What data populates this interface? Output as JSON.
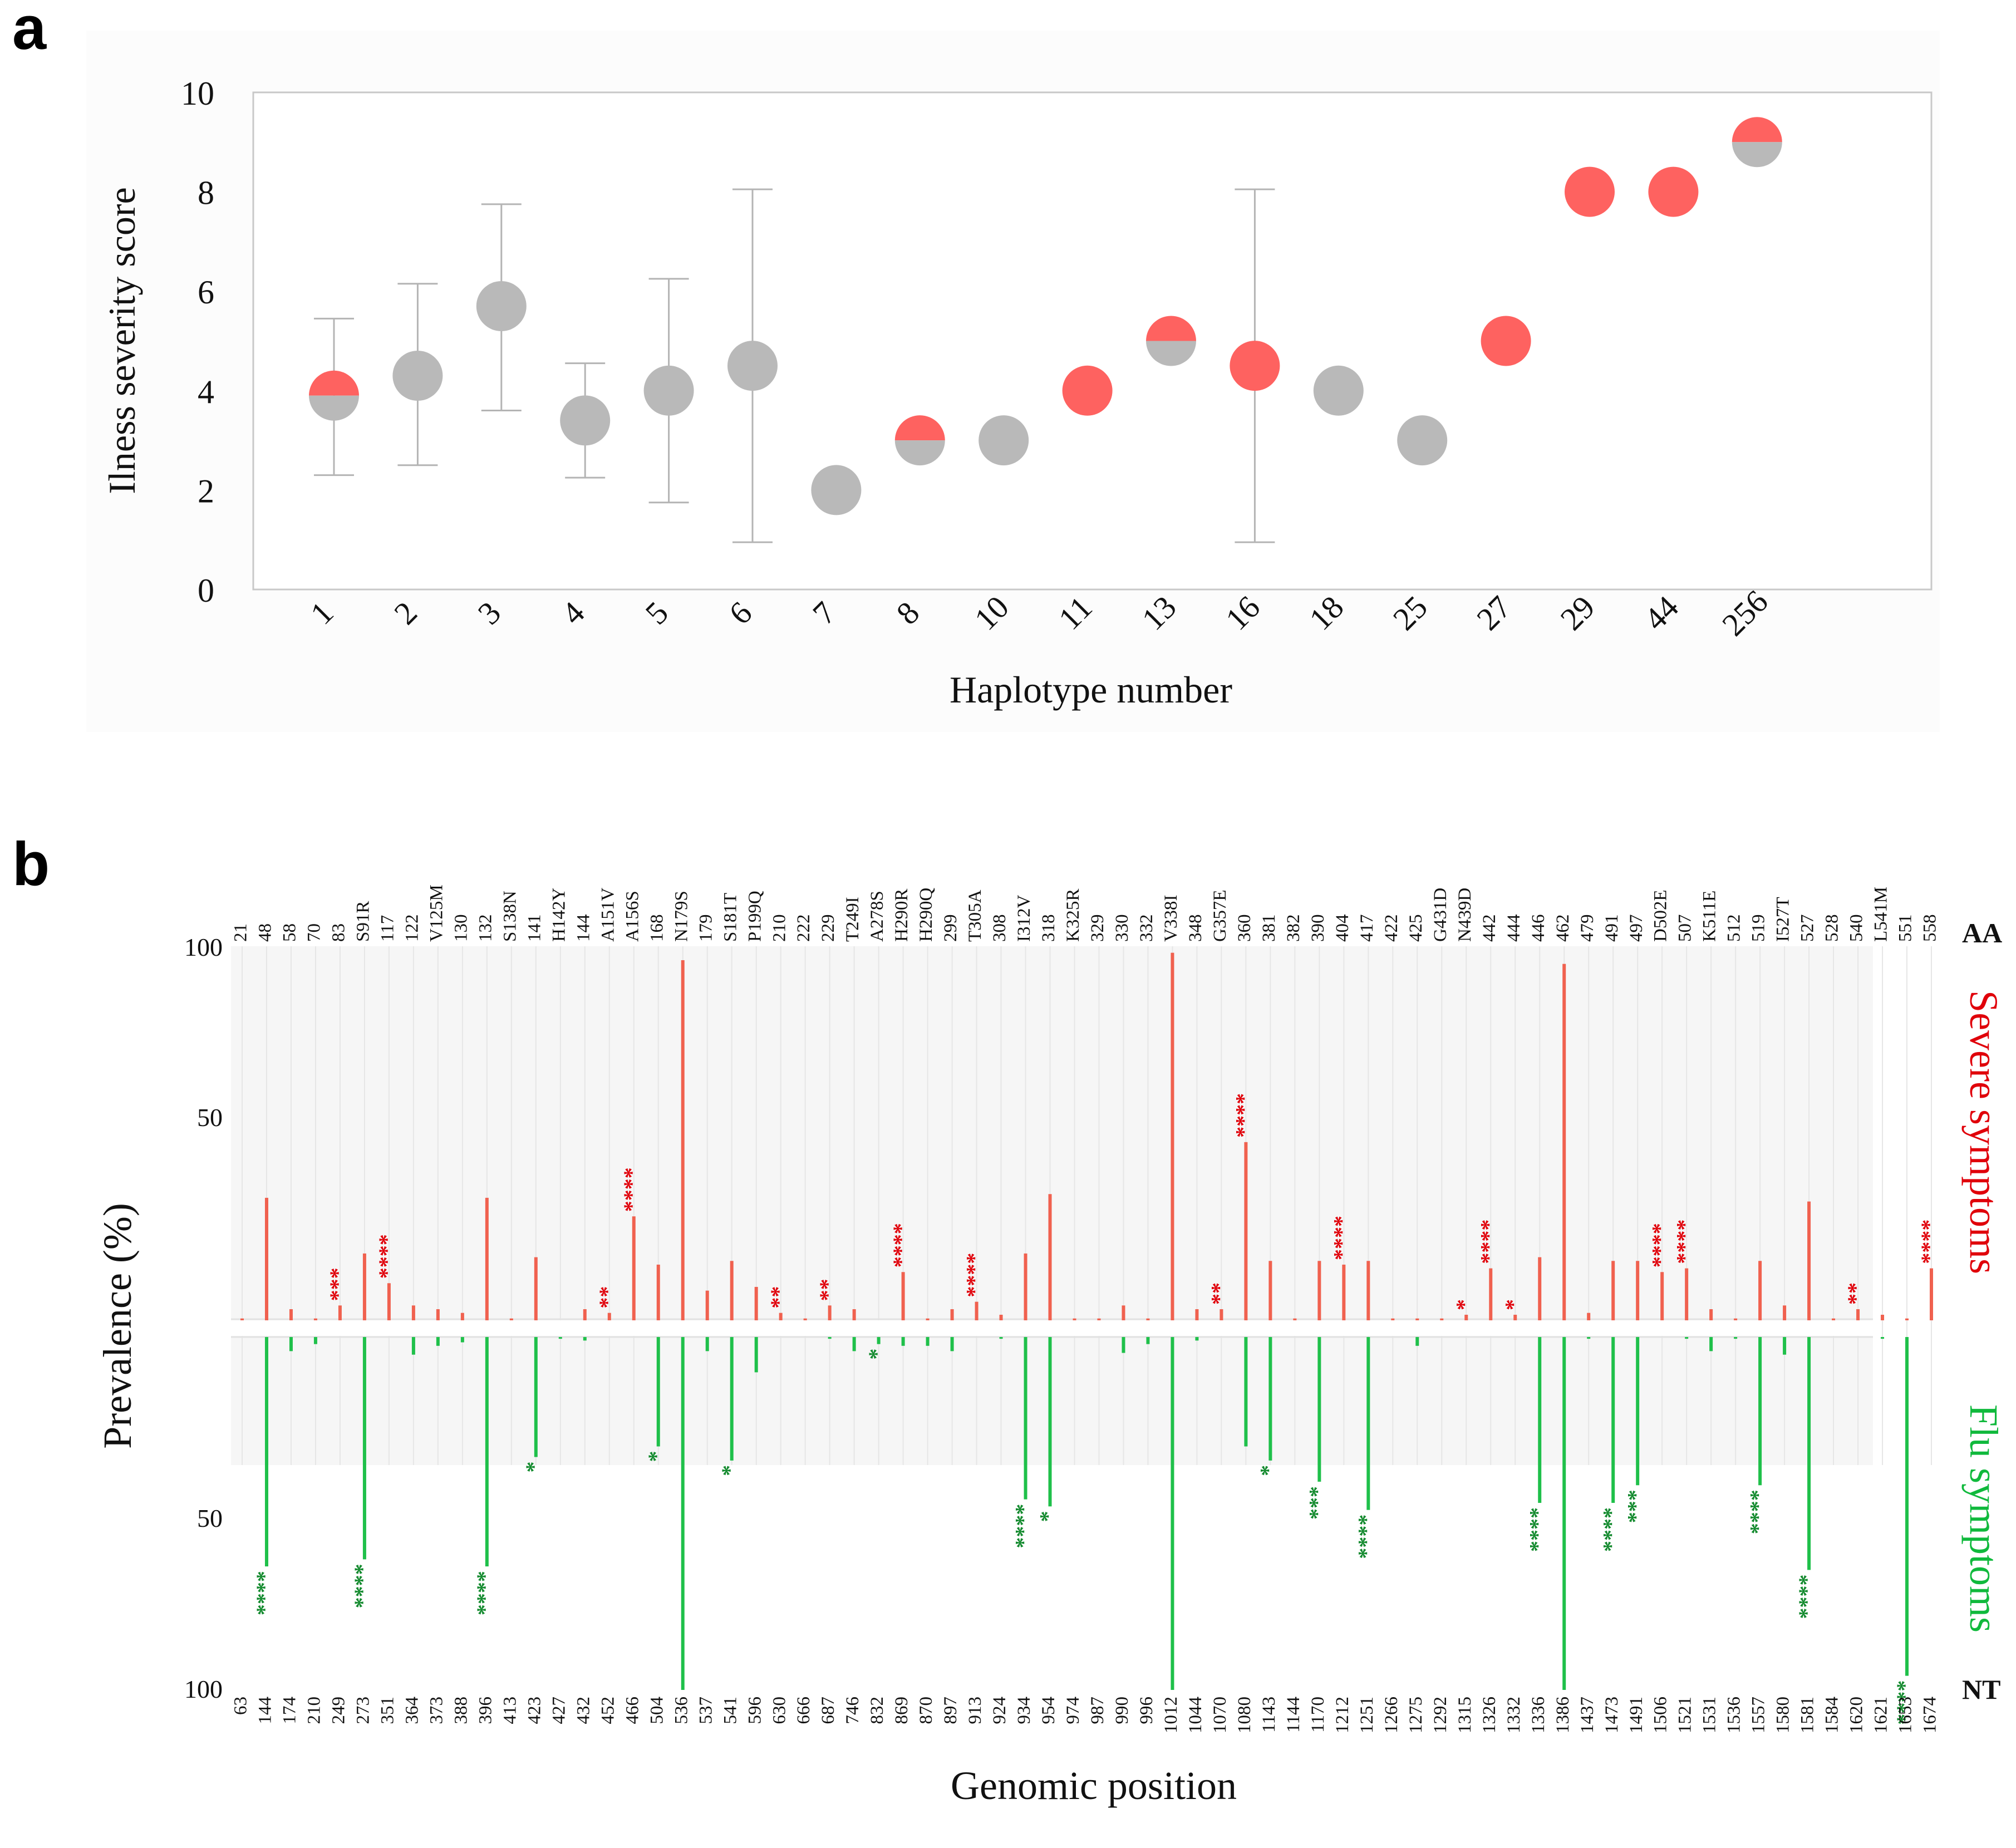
{
  "panel_a": {
    "letter": "a",
    "chart_data": {
      "type": "scatter",
      "title": "",
      "xlabel": "Haplotype number",
      "ylabel": "Ilness severity score",
      "ylim": [
        0,
        10
      ],
      "yticks": [
        "0",
        "2",
        "4",
        "6",
        "8",
        "10"
      ],
      "categories": [
        "1",
        "2",
        "3",
        "4",
        "5",
        "6",
        "7",
        "8",
        "10",
        "11",
        "13",
        "16",
        "18",
        "25",
        "27",
        "29",
        "44",
        "256"
      ],
      "values": [
        3.9,
        4.3,
        5.7,
        3.4,
        4.0,
        4.5,
        2.0,
        3.0,
        3.0,
        4.0,
        5.0,
        4.5,
        4.0,
        3.0,
        5.0,
        8.0,
        8.0,
        9.0
      ],
      "error_low": [
        2.3,
        2.5,
        3.6,
        2.25,
        1.75,
        0.95,
        null,
        null,
        null,
        null,
        null,
        0.95,
        null,
        null,
        null,
        null,
        null,
        null
      ],
      "error_high": [
        5.45,
        6.15,
        7.75,
        4.55,
        6.25,
        8.05,
        null,
        null,
        null,
        null,
        null,
        8.05,
        null,
        null,
        null,
        null,
        null,
        null
      ],
      "marker_fill": [
        "half",
        "grey",
        "grey",
        "grey",
        "grey",
        "grey",
        "grey",
        "half",
        "grey",
        "red",
        "half",
        "red",
        "grey",
        "grey",
        "red",
        "red",
        "red",
        "half"
      ],
      "legend": []
    }
  },
  "panel_b": {
    "letter": "b",
    "chart_data": {
      "type": "bar",
      "title": "",
      "xlabel": "Genomic position",
      "ylabel": "Prevalence (%)",
      "ylim": [
        0,
        100
      ],
      "yticks_top": [
        "100",
        "50"
      ],
      "yticks_bottom": [
        "50",
        "100"
      ],
      "aa_tag": "AA",
      "nt_tag": "NT",
      "aa_labels": [
        "21",
        "48",
        "58",
        "70",
        "83",
        "S91R",
        "117",
        "122",
        "V125M",
        "130",
        "132",
        "S138N",
        "141",
        "H142Y",
        "144",
        "A151V",
        "A156S",
        "168",
        "N179S",
        "179",
        "S181T",
        "P199Q",
        "210",
        "222",
        "229",
        "T249I",
        "A278S",
        "H290R",
        "H290Q",
        "299",
        "T305A",
        "308",
        "I312V",
        "318",
        "K325R",
        "329",
        "330",
        "332",
        "V338I",
        "348",
        "G357E",
        "360",
        "381",
        "382",
        "390",
        "404",
        "417",
        "422",
        "425",
        "G431D",
        "N439D",
        "442",
        "444",
        "446",
        "462",
        "479",
        "491",
        "497",
        "D502E",
        "507",
        "K511E",
        "512",
        "519",
        "I527T",
        "527",
        "528",
        "540",
        "L541M",
        "551",
        "558"
      ],
      "nt_labels": [
        "63",
        "144",
        "174",
        "210",
        "249",
        "273",
        "351",
        "364",
        "373",
        "388",
        "396",
        "413",
        "423",
        "427",
        "432",
        "452",
        "466",
        "504",
        "536",
        "537",
        "541",
        "596",
        "630",
        "666",
        "687",
        "746",
        "832",
        "869",
        "870",
        "897",
        "913",
        "924",
        "934",
        "954",
        "974",
        "987",
        "990",
        "996",
        "1012",
        "1044",
        "1070",
        "1080",
        "1143",
        "1144",
        "1170",
        "1212",
        "1251",
        "1266",
        "1275",
        "1292",
        "1315",
        "1326",
        "1332",
        "1336",
        "1386",
        "1437",
        "1473",
        "1491",
        "1506",
        "1521",
        "1531",
        "1536",
        "1557",
        "1580",
        "1581",
        "1584",
        "1620",
        "1621",
        "1653",
        "1674"
      ],
      "series": [
        {
          "name": "Severe symptoms",
          "color": "#f0614f",
          "values": [
            0.5,
            33,
            3,
            0.5,
            4,
            18,
            10,
            4,
            3,
            2,
            33,
            0.5,
            17,
            0,
            3,
            2,
            28,
            15,
            97,
            8,
            16,
            9,
            2,
            0.5,
            4,
            3,
            0,
            13,
            0.5,
            3,
            5,
            1.5,
            18,
            34,
            0.5,
            0.5,
            4,
            0.5,
            99,
            3,
            3,
            48,
            16,
            0.5,
            16,
            15,
            16,
            0.5,
            0.5,
            0.5,
            1.5,
            14,
            1.5,
            17,
            96,
            2,
            16,
            16,
            13,
            14,
            3,
            0.5,
            16,
            4,
            32,
            0.5,
            3,
            1.5,
            0.5,
            14
          ],
          "significance": [
            "",
            "",
            "",
            "",
            "***",
            "",
            "****",
            "",
            "",
            "",
            "",
            "",
            "",
            "",
            "",
            "**",
            "****",
            "",
            "",
            "",
            "",
            "",
            "**",
            "",
            "**",
            "",
            "",
            "****",
            "",
            "",
            "****",
            "",
            "",
            "",
            "",
            "",
            "",
            "",
            "",
            "",
            "**",
            "****",
            "",
            "",
            "",
            "****",
            "",
            "",
            "",
            "",
            "*",
            "****",
            "*",
            "",
            "",
            "",
            "",
            "",
            "****",
            "****",
            "",
            "",
            "",
            "",
            "",
            "",
            "**",
            "",
            "",
            "****"
          ]
        },
        {
          "name": "Flu symptoms",
          "color": "#1fc04a",
          "values": [
            0,
            65,
            4,
            2,
            0,
            63,
            0,
            5,
            2.5,
            1.5,
            65,
            0,
            34,
            0.5,
            1,
            0,
            0,
            31,
            100,
            4,
            35,
            10,
            0,
            0,
            0.5,
            4,
            2,
            2.5,
            2.5,
            4,
            0,
            0.5,
            46,
            48,
            0,
            0,
            4.5,
            2,
            100,
            1,
            0,
            31,
            35,
            0,
            41,
            0,
            49,
            0,
            2.5,
            0,
            0,
            0,
            0,
            47,
            100,
            0.5,
            47,
            42,
            0,
            0.5,
            4,
            0.5,
            42,
            5,
            66,
            0,
            0,
            0.5,
            96,
            0
          ],
          "significance": [
            "",
            "****",
            "",
            "",
            "",
            "****",
            "",
            "",
            "",
            "",
            "****",
            "",
            "*",
            "",
            "",
            "",
            "",
            "*",
            "",
            "",
            "*",
            "",
            "",
            "",
            "",
            "",
            "*",
            "",
            "",
            "",
            "",
            "",
            "****",
            "*",
            "",
            "",
            "",
            "",
            "",
            "",
            "",
            "",
            "*",
            "",
            "***",
            "",
            "****",
            "",
            "",
            "",
            "",
            "",
            "",
            "****",
            "",
            "",
            "****",
            "***",
            "",
            "",
            "",
            "",
            "****",
            "",
            "****",
            "",
            "",
            "",
            "****",
            ""
          ]
        }
      ],
      "legend": [
        {
          "label": "Severe symptoms",
          "color": "#e0000a"
        },
        {
          "label": "Flu symptoms",
          "color": "#10b93c"
        }
      ]
    }
  }
}
